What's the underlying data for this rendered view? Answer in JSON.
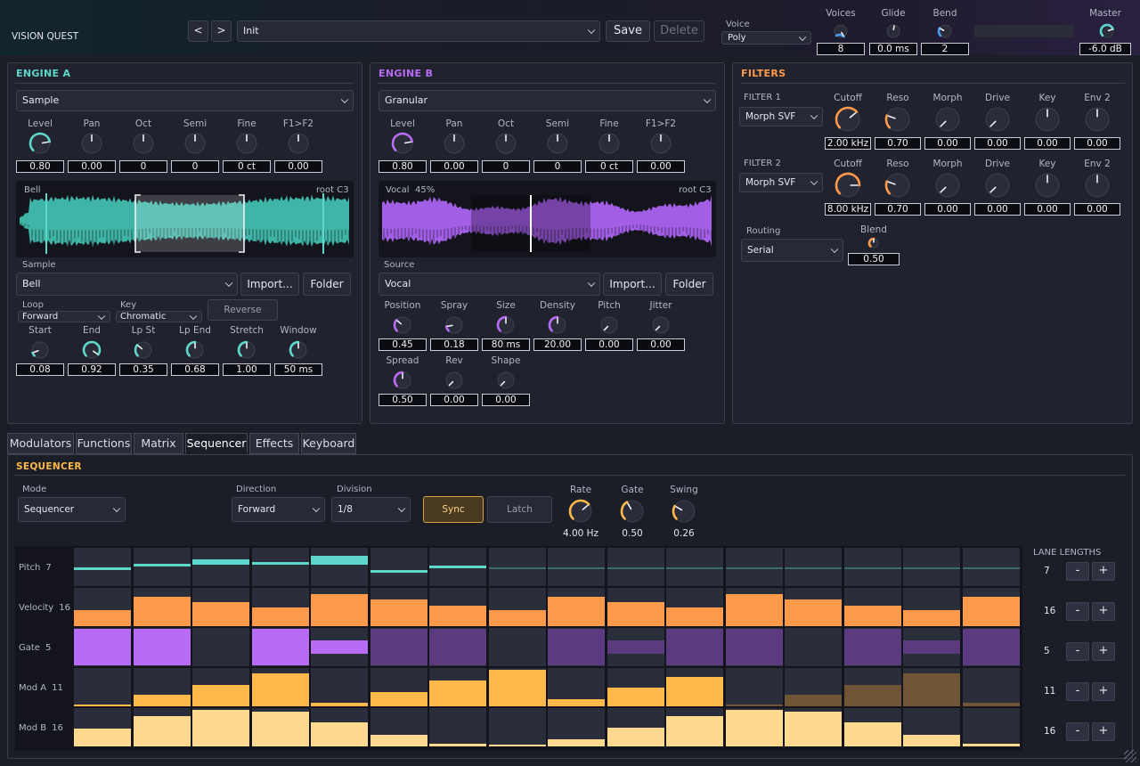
{
  "app": {
    "title": "VISION QUEST"
  },
  "header": {
    "preset": "Init",
    "save": "Save",
    "delete": "Delete",
    "voice_label": "Voice",
    "voice_mode": "Poly",
    "knobs": [
      {
        "label": "Voices",
        "value": "8"
      },
      {
        "label": "Glide",
        "value": "0.0 ms"
      },
      {
        "label": "Bend",
        "value": "2"
      }
    ],
    "master_label": "Master",
    "master_value": "-6.0 dB"
  },
  "engine_a": {
    "title": "ENGINE A",
    "type": "Sample",
    "knobs": [
      {
        "label": "Level",
        "value": "0.80"
      },
      {
        "label": "Pan",
        "value": "0.00"
      },
      {
        "label": "Oct",
        "value": "0"
      },
      {
        "label": "Semi",
        "value": "0"
      },
      {
        "label": "Fine",
        "value": "0 ct"
      },
      {
        "label": "F1>F2",
        "value": "0.00"
      }
    ],
    "wave_name": "Bell",
    "wave_root": "root C3",
    "sample_label": "Sample",
    "sample_value": "Bell",
    "import": "Import...",
    "folder": "Folder",
    "loop_label": "Loop",
    "loop_value": "Forward",
    "key_label": "Key",
    "key_value": "Chromatic",
    "reverse": "Reverse",
    "knobs2": [
      {
        "label": "Start",
        "value": "0.08"
      },
      {
        "label": "End",
        "value": "0.92"
      },
      {
        "label": "Lp St",
        "value": "0.35"
      },
      {
        "label": "Lp End",
        "value": "0.68"
      },
      {
        "label": "Stretch",
        "value": "1.00"
      },
      {
        "label": "Window",
        "value": "50 ms"
      }
    ]
  },
  "engine_b": {
    "title": "ENGINE B",
    "type": "Granular",
    "knobs": [
      {
        "label": "Level",
        "value": "0.80"
      },
      {
        "label": "Pan",
        "value": "0.00"
      },
      {
        "label": "Oct",
        "value": "0"
      },
      {
        "label": "Semi",
        "value": "0"
      },
      {
        "label": "Fine",
        "value": "0 ct"
      },
      {
        "label": "F1>F2",
        "value": "0.00"
      }
    ],
    "wave_name": "Vocal",
    "wave_pct": "45%",
    "wave_root": "root C3",
    "source_label": "Source",
    "source_value": "Vocal",
    "import": "Import...",
    "folder": "Folder",
    "knobs2": [
      {
        "label": "Position",
        "value": "0.45"
      },
      {
        "label": "Spray",
        "value": "0.18"
      },
      {
        "label": "Size",
        "value": "80 ms"
      },
      {
        "label": "Density",
        "value": "20.00"
      },
      {
        "label": "Pitch",
        "value": "0.00"
      },
      {
        "label": "Jitter",
        "value": "0.00"
      }
    ],
    "knobs3": [
      {
        "label": "Spread",
        "value": "0.50"
      },
      {
        "label": "Rev",
        "value": "0.00"
      },
      {
        "label": "Shape",
        "value": "0.00"
      }
    ]
  },
  "filters": {
    "title": "FILTERS",
    "f1": {
      "label": "FILTER 1",
      "type": "Morph SVF",
      "knobs": [
        {
          "label": "Cutoff",
          "value": "2.00 kHz"
        },
        {
          "label": "Reso",
          "value": "0.70"
        },
        {
          "label": "Morph",
          "value": "0.00"
        },
        {
          "label": "Drive",
          "value": "0.00"
        },
        {
          "label": "Key",
          "value": "0.00"
        },
        {
          "label": "Env 2",
          "value": "0.00"
        }
      ]
    },
    "f2": {
      "label": "FILTER 2",
      "type": "Morph SVF",
      "knobs": [
        {
          "label": "Cutoff",
          "value": "8.00 kHz"
        },
        {
          "label": "Reso",
          "value": "0.70"
        },
        {
          "label": "Morph",
          "value": "0.00"
        },
        {
          "label": "Drive",
          "value": "0.00"
        },
        {
          "label": "Key",
          "value": "0.00"
        },
        {
          "label": "Env 2",
          "value": "0.00"
        }
      ]
    },
    "routing_label": "Routing",
    "routing_value": "Serial",
    "blend_label": "Blend",
    "blend_value": "0.50"
  },
  "tabs": [
    "Modulators",
    "Functions",
    "Matrix",
    "Sequencer",
    "Effects",
    "Keyboard"
  ],
  "sequencer": {
    "title": "SEQUENCER",
    "mode_label": "Mode",
    "mode_value": "Sequencer",
    "direction_label": "Direction",
    "direction_value": "Forward",
    "division_label": "Division",
    "division_value": "1/8",
    "sync": "Sync",
    "latch": "Latch",
    "knobs": [
      {
        "label": "Rate",
        "value": "4.00 Hz"
      },
      {
        "label": "Gate",
        "value": "0.50"
      },
      {
        "label": "Swing",
        "value": "0.26"
      }
    ],
    "lane_lengths_title": "LANE LENGTHS",
    "lanes": [
      {
        "name": "Pitch",
        "length": "7",
        "color": "#5fd6cc",
        "dim": "#3d7c78",
        "kind": "pitch",
        "values": [
          0.4,
          0.55,
          0.7,
          0.6,
          0.85,
          0.3,
          0.45,
          0.4,
          0.4,
          0.4,
          0.4,
          0.4,
          0.4,
          0.4,
          0.4,
          0.4
        ]
      },
      {
        "name": "Velocity",
        "length": "16",
        "color": "#ff9a4a",
        "dim": "#ff9a4a",
        "kind": "bar",
        "values": [
          0.42,
          0.78,
          0.65,
          0.5,
          0.85,
          0.72,
          0.55,
          0.42,
          0.78,
          0.65,
          0.5,
          0.85,
          0.72,
          0.55,
          0.42,
          0.78
        ]
      },
      {
        "name": "Gate",
        "length": "5",
        "color": "#b86cf5",
        "dim": "#5b3a80",
        "kind": "gate",
        "values": [
          1,
          1,
          0,
          1,
          0.35,
          1,
          1,
          0,
          1,
          0.35,
          1,
          1,
          0,
          1,
          0.35,
          1
        ]
      },
      {
        "name": "Mod A",
        "length": "11",
        "color": "#ffb84a",
        "dim": "#6f5536",
        "kind": "bar",
        "values": [
          0.05,
          0.3,
          0.58,
          0.88,
          0.1,
          0.38,
          0.68,
          0.98,
          0.2,
          0.5,
          0.78,
          0.05,
          0.3,
          0.58,
          0.88,
          0.1
        ]
      },
      {
        "name": "Mod B",
        "length": "16",
        "color": "#ffd990",
        "dim": "#ffd990",
        "kind": "bar",
        "values": [
          0.48,
          0.8,
          0.98,
          0.92,
          0.65,
          0.3,
          0.08,
          0.05,
          0.2,
          0.5,
          0.82,
          0.98,
          0.92,
          0.65,
          0.3,
          0.08
        ]
      }
    ],
    "minus": "-",
    "plus": "+"
  }
}
